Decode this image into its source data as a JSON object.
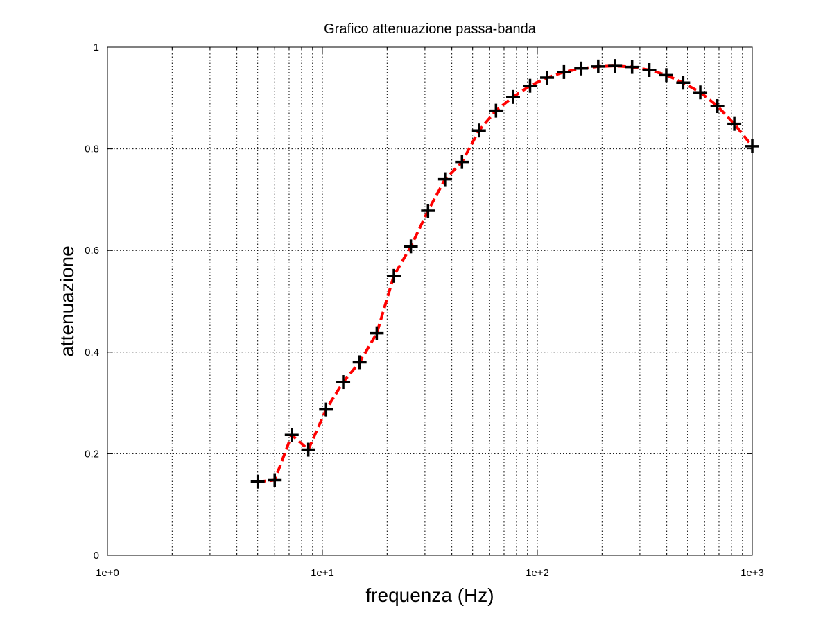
{
  "chart_data": {
    "type": "scatter",
    "title": "Grafico attenuazione passa-banda",
    "xlabel": "frequenza (Hz)",
    "ylabel": "attenuazione",
    "x_scale": "log",
    "xlim": [
      1,
      1000
    ],
    "ylim": [
      0,
      1
    ],
    "grid": true,
    "x_ticks": [
      {
        "value": 1,
        "label": "1e+0"
      },
      {
        "value": 10,
        "label": "1e+1"
      },
      {
        "value": 100,
        "label": "1e+2"
      },
      {
        "value": 1000,
        "label": "1e+3"
      }
    ],
    "y_ticks": [
      {
        "value": 0,
        "label": "0"
      },
      {
        "value": 0.2,
        "label": "0.2"
      },
      {
        "value": 0.4,
        "label": "0.4"
      },
      {
        "value": 0.6,
        "label": "0.6"
      },
      {
        "value": 0.8,
        "label": "0.8"
      },
      {
        "value": 1,
        "label": "1"
      }
    ],
    "series": [
      {
        "marker": "plus",
        "marker_color": "#000000",
        "line_style": "dashed",
        "line_color": "#ff0000",
        "x": [
          5.0,
          6.0,
          7.2,
          8.6,
          10.4,
          12.5,
          14.9,
          17.9,
          21.5,
          25.8,
          31.0,
          37.2,
          44.6,
          53.5,
          64.2,
          77.1,
          92.5,
          111,
          133,
          160,
          192,
          230,
          276,
          332,
          398,
          477,
          573,
          688,
          825,
          1000
        ],
        "y": [
          0.145,
          0.148,
          0.237,
          0.208,
          0.287,
          0.341,
          0.38,
          0.437,
          0.55,
          0.608,
          0.678,
          0.74,
          0.774,
          0.836,
          0.875,
          0.902,
          0.924,
          0.94,
          0.951,
          0.958,
          0.962,
          0.963,
          0.961,
          0.955,
          0.945,
          0.93,
          0.911,
          0.884,
          0.849,
          0.805
        ]
      }
    ]
  }
}
